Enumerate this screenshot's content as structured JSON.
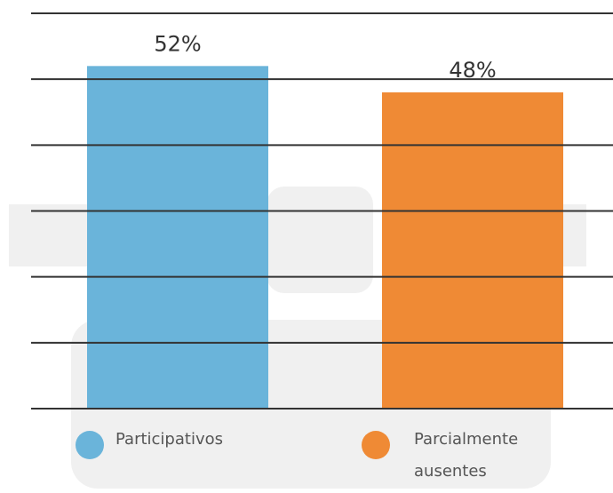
{
  "chart_data": {
    "type": "bar",
    "series": [
      {
        "name": "Participativos",
        "color": "#6ab4da",
        "values": [
          52
        ],
        "value_labels": [
          "52%"
        ]
      },
      {
        "name": "Parcialmente ausentes",
        "color": "#ef8a35",
        "values": [
          48
        ],
        "value_labels": [
          "48%"
        ]
      }
    ],
    "ylim": [
      0,
      60
    ],
    "yticks": [
      0,
      10,
      20,
      30,
      40,
      50,
      60
    ],
    "grid": true
  }
}
